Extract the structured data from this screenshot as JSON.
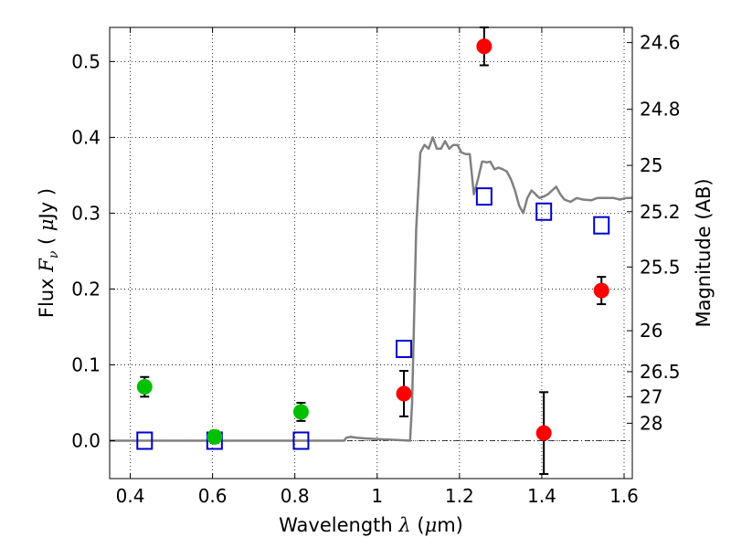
{
  "chart_data": {
    "type": "scatter",
    "xlabel": "Wavelength  λ (μm)",
    "ylabel": "Flux  F_ν  ( μJy )",
    "ylabel_right": "Magnitude (AB)",
    "xlim": [
      0.35,
      1.62
    ],
    "ylim": [
      -0.05,
      0.545
    ],
    "grid": true,
    "x_ticks": [
      0.4,
      0.6,
      0.8,
      1.0,
      1.2,
      1.4,
      1.6
    ],
    "x_tick_labels": [
      "0.4",
      "0.6",
      "0.8",
      "1",
      "1.2",
      "1.4",
      "1.6"
    ],
    "y_ticks": [
      0.0,
      0.1,
      0.2,
      0.3,
      0.4,
      0.5
    ],
    "y_tick_labels": [
      "0.0",
      "0.1",
      "0.2",
      "0.3",
      "0.4",
      "0.5"
    ],
    "right_axis_ticks": [
      {
        "label": "24.6",
        "flux": 0.525
      },
      {
        "label": "24.8",
        "flux": 0.437
      },
      {
        "label": "25",
        "flux": 0.363
      },
      {
        "label": "25.2",
        "flux": 0.302
      },
      {
        "label": "25.5",
        "flux": 0.229
      },
      {
        "label": "26",
        "flux": 0.145
      },
      {
        "label": "26.5",
        "flux": 0.091
      },
      {
        "label": "27",
        "flux": 0.058
      },
      {
        "label": "28",
        "flux": 0.023
      }
    ],
    "zero_line": 0.0,
    "series": [
      {
        "kind": "line",
        "color": "#808080",
        "x": [
          0.35,
          0.92,
          0.925,
          0.935,
          0.95,
          0.97,
          1.0,
          1.05,
          1.08,
          1.085,
          1.095,
          1.105,
          1.115,
          1.125,
          1.135,
          1.145,
          1.155,
          1.165,
          1.175,
          1.185,
          1.195,
          1.205,
          1.215,
          1.225,
          1.235,
          1.245,
          1.255,
          1.26,
          1.265,
          1.275,
          1.285,
          1.295,
          1.305,
          1.315,
          1.325,
          1.335,
          1.345,
          1.355,
          1.365,
          1.375,
          1.385,
          1.39,
          1.395,
          1.405,
          1.415,
          1.425,
          1.435,
          1.445,
          1.455,
          1.47,
          1.485,
          1.5,
          1.52,
          1.535,
          1.55,
          1.56,
          1.575,
          1.59,
          1.605,
          1.62
        ],
        "y": [
          0.0,
          0.0,
          0.004,
          0.005,
          0.004,
          0.003,
          0.002,
          0.001,
          0.0,
          0.05,
          0.28,
          0.38,
          0.39,
          0.385,
          0.4,
          0.385,
          0.385,
          0.395,
          0.385,
          0.39,
          0.39,
          0.38,
          0.378,
          0.378,
          0.325,
          0.345,
          0.368,
          0.368,
          0.367,
          0.368,
          0.358,
          0.36,
          0.358,
          0.355,
          0.345,
          0.33,
          0.31,
          0.3,
          0.32,
          0.33,
          0.325,
          0.322,
          0.32,
          0.322,
          0.325,
          0.33,
          0.335,
          0.325,
          0.318,
          0.315,
          0.32,
          0.318,
          0.317,
          0.32,
          0.32,
          0.32,
          0.32,
          0.318,
          0.32,
          0.32
        ]
      },
      {
        "kind": "square",
        "color": "#0000cc",
        "x": [
          0.435,
          0.605,
          0.815,
          1.065,
          1.26,
          1.405,
          1.545
        ],
        "y": [
          0.0,
          0.0,
          0.0,
          0.121,
          0.322,
          0.302,
          0.284
        ]
      },
      {
        "kind": "circle",
        "color": "#00c000",
        "x": [
          0.435,
          0.605,
          0.815
        ],
        "y": [
          0.071,
          0.005,
          0.038
        ],
        "yerr": [
          0.013,
          0.008,
          0.012
        ]
      },
      {
        "kind": "circle",
        "color": "#ff0000",
        "x": [
          1.065,
          1.26,
          1.405,
          1.545
        ],
        "y": [
          0.062,
          0.52,
          0.01,
          0.198
        ],
        "yerr": [
          0.03,
          0.025,
          0.054,
          0.018
        ]
      }
    ]
  }
}
